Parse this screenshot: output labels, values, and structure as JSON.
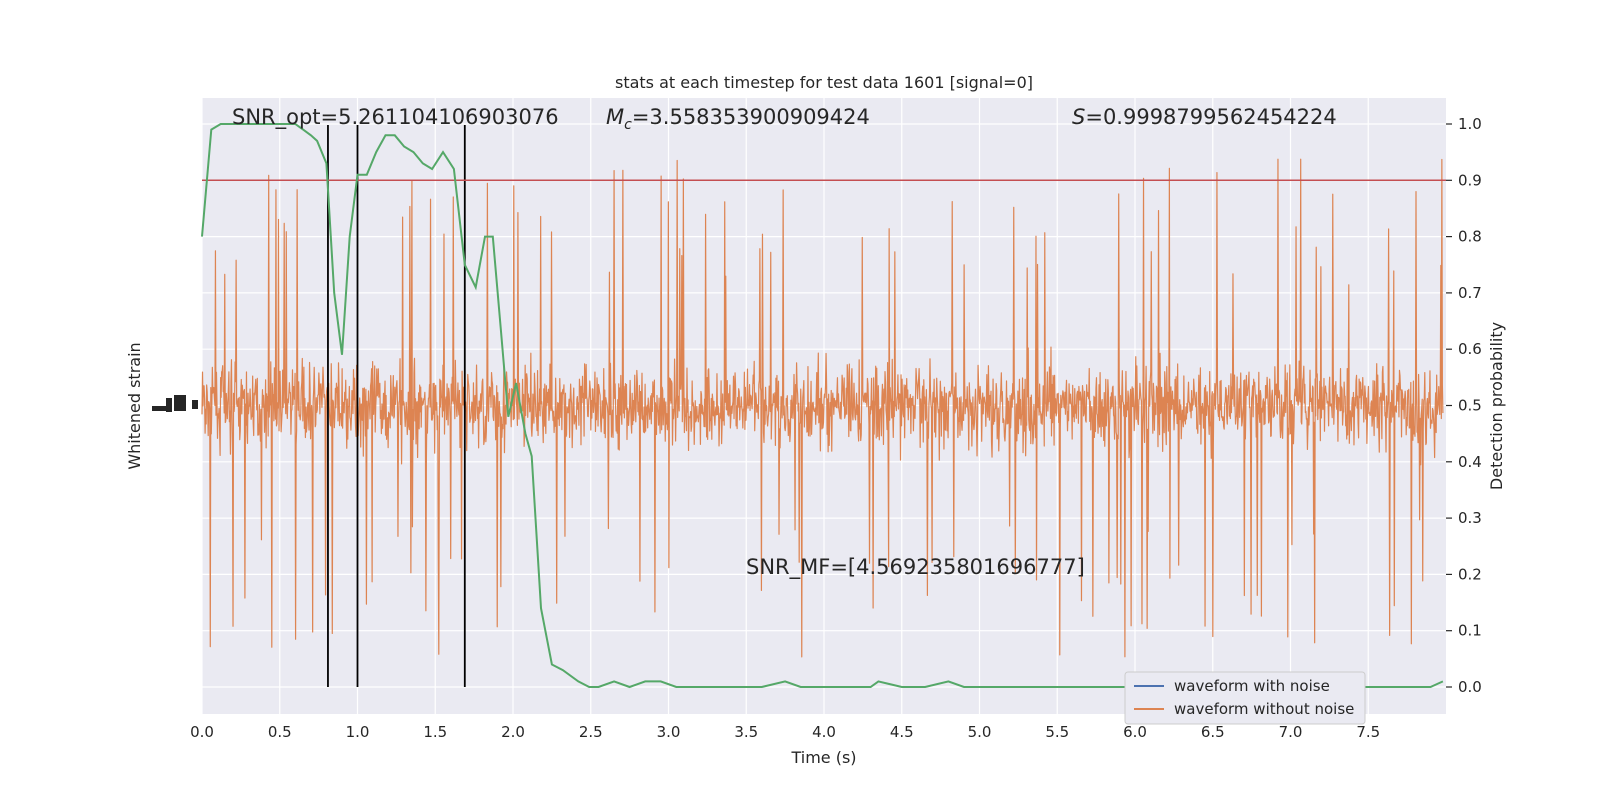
{
  "chart_data": {
    "type": "line",
    "title": "stats at each timestep for test data 1601 [signal=0]",
    "xlabel": "Time (s)",
    "ylabel_left": "Whitened strain",
    "ylabel_right": "Detection probability",
    "xlim": [
      0.0,
      8.0
    ],
    "ylim_right": [
      -0.05,
      1.05
    ],
    "x_ticks": [
      "0.0",
      "0.5",
      "1.0",
      "1.5",
      "2.0",
      "2.5",
      "3.0",
      "3.5",
      "4.0",
      "4.5",
      "5.0",
      "5.5",
      "6.0",
      "6.5",
      "7.0",
      "7.5"
    ],
    "x_tick_values": [
      0.0,
      0.5,
      1.0,
      1.5,
      2.0,
      2.5,
      3.0,
      3.5,
      4.0,
      4.5,
      5.0,
      5.5,
      6.0,
      6.5,
      7.0,
      7.5
    ],
    "y_right_ticks": [
      "0.0",
      "0.1",
      "0.2",
      "0.3",
      "0.4",
      "0.5",
      "0.6",
      "0.7",
      "0.8",
      "0.9",
      "1.0"
    ],
    "y_right_tick_values": [
      0.0,
      0.1,
      0.2,
      0.3,
      0.4,
      0.5,
      0.6,
      0.7,
      0.8,
      0.9,
      1.0
    ],
    "threshold": {
      "value": 0.9,
      "color": "#c44e52"
    },
    "vertical_markers": {
      "x": [
        0.81,
        1.0,
        1.69
      ],
      "color": "#000000"
    },
    "annotations": {
      "snr_opt": "SNR_opt=5.261104106903076",
      "mc_prefix": "M",
      "mc_sub": "c",
      "mc_value": "=3.558353900909424",
      "s_prefix": "S",
      "s_value": "=0.9998799562454224",
      "snr_mf": "SNR_MF=[4.569235801696777]"
    },
    "series": [
      {
        "name": "waveform with noise",
        "color": "#4c72b0"
      },
      {
        "name": "waveform without noise",
        "color": "#dd8452",
        "description_center": 0.5,
        "amplitude_typical": 0.15,
        "amplitude_max": 0.45
      },
      {
        "name": "",
        "color": "#55a868",
        "axis": "right",
        "x": [
          0.0,
          0.06,
          0.12,
          0.2,
          0.3,
          0.4,
          0.5,
          0.6,
          0.65,
          0.7,
          0.74,
          0.8,
          0.85,
          0.9,
          0.95,
          1.0,
          1.06,
          1.12,
          1.18,
          1.24,
          1.3,
          1.36,
          1.42,
          1.48,
          1.55,
          1.62,
          1.69,
          1.76,
          1.82,
          1.87,
          1.92,
          1.97,
          2.02,
          2.08,
          2.12,
          2.18,
          2.25,
          2.32,
          2.42,
          2.49,
          2.55,
          2.65,
          2.75,
          2.85,
          2.95,
          3.05,
          3.3,
          3.6,
          3.75,
          3.85,
          3.95,
          4.1,
          4.3,
          4.35,
          4.5,
          4.65,
          4.8,
          4.9,
          5.0,
          5.2,
          5.5,
          6.0,
          6.5,
          7.0,
          7.1,
          7.25,
          7.4,
          7.45,
          7.55,
          7.7,
          7.9,
          7.98
        ],
        "y": [
          0.8,
          0.99,
          1.0,
          1.0,
          1.0,
          1.0,
          1.0,
          1.0,
          0.99,
          0.98,
          0.97,
          0.93,
          0.7,
          0.59,
          0.8,
          0.91,
          0.91,
          0.95,
          0.98,
          0.98,
          0.96,
          0.95,
          0.93,
          0.92,
          0.95,
          0.92,
          0.75,
          0.71,
          0.8,
          0.8,
          0.64,
          0.48,
          0.54,
          0.45,
          0.41,
          0.14,
          0.04,
          0.03,
          0.01,
          0.0,
          0.0,
          0.01,
          0.0,
          0.01,
          0.01,
          0.0,
          0.0,
          0.0,
          0.01,
          0.0,
          0.0,
          0.0,
          0.0,
          0.01,
          0.0,
          0.0,
          0.01,
          0.0,
          0.0,
          0.0,
          0.0,
          0.0,
          0.0,
          0.0,
          0.01,
          0.0,
          0.01,
          0.0,
          0.0,
          0.0,
          0.0,
          0.01
        ]
      }
    ],
    "legend": {
      "placement": "lower-right",
      "entries": [
        "waveform with noise",
        "waveform without noise"
      ]
    },
    "colors": {
      "background": "#eaeaf2",
      "grid": "#ffffff",
      "text": "#262626"
    }
  }
}
